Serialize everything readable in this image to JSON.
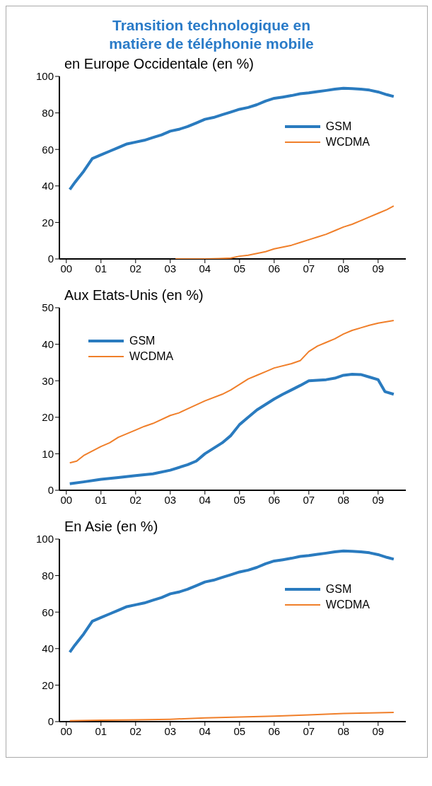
{
  "chart_data": [
    {
      "type": "line",
      "title": "Transition technologique en matière de téléphonie mobile",
      "subtitle": "en Europe Occidentale  (en %)",
      "xlim": [
        1999.8,
        2009.8
      ],
      "xticks": [
        {
          "value": 2000,
          "label": "00"
        },
        {
          "value": 2001,
          "label": "01"
        },
        {
          "value": 2002,
          "label": "02"
        },
        {
          "value": 2003,
          "label": "03"
        },
        {
          "value": 2004,
          "label": "04"
        },
        {
          "value": 2005,
          "label": "05"
        },
        {
          "value": 2006,
          "label": "06"
        },
        {
          "value": 2007,
          "label": "07"
        },
        {
          "value": 2008,
          "label": "08"
        },
        {
          "value": 2009,
          "label": "09"
        }
      ],
      "ylim": [
        0,
        100
      ],
      "yticks": [
        0,
        20,
        40,
        60,
        80,
        100
      ],
      "legend": "top right",
      "series": [
        {
          "name": "GSM",
          "color": "#2a7bbf",
          "x": [
            2000.1,
            2000.25,
            2000.5,
            2000.75,
            2001,
            2001.25,
            2001.5,
            2001.75,
            2002,
            2002.25,
            2002.5,
            2002.75,
            2003,
            2003.25,
            2003.5,
            2003.75,
            2004,
            2004.25,
            2004.5,
            2004.75,
            2005,
            2005.25,
            2005.5,
            2005.75,
            2006,
            2006.25,
            2006.5,
            2006.75,
            2007,
            2007.25,
            2007.5,
            2007.75,
            2008,
            2008.25,
            2008.5,
            2008.75,
            2009,
            2009.25,
            2009.45
          ],
          "values": [
            38,
            42,
            48,
            55,
            57,
            59,
            61,
            63,
            64,
            65,
            66.5,
            68,
            70,
            71,
            72.5,
            74.5,
            76.5,
            77.5,
            79,
            80.5,
            82,
            83,
            84.5,
            86.5,
            88,
            88.7,
            89.5,
            90.5,
            91,
            91.7,
            92.3,
            93,
            93.5,
            93.3,
            93,
            92.5,
            91.5,
            90,
            89
          ]
        },
        {
          "name": "WCDMA",
          "color": "#f07f2a",
          "x": [
            2003.15,
            2003.5,
            2004,
            2004.4,
            2004.75,
            2005,
            2005.25,
            2005.5,
            2005.75,
            2006,
            2006.25,
            2006.5,
            2006.75,
            2007,
            2007.25,
            2007.5,
            2007.75,
            2008,
            2008.25,
            2008.5,
            2008.75,
            2009,
            2009.25,
            2009.45
          ],
          "values": [
            0,
            0,
            0,
            0.2,
            0.5,
            1.5,
            2,
            3,
            4,
            5.5,
            6.5,
            7.5,
            9,
            10.5,
            12,
            13.5,
            15.5,
            17.5,
            19,
            21,
            23,
            25,
            27,
            29
          ]
        }
      ]
    },
    {
      "type": "line",
      "title": "Aux Etats-Unis (en %)",
      "xlim": [
        1999.8,
        2009.8
      ],
      "xticks": [
        {
          "value": 2000,
          "label": "00"
        },
        {
          "value": 2001,
          "label": "01"
        },
        {
          "value": 2002,
          "label": "02"
        },
        {
          "value": 2003,
          "label": "03"
        },
        {
          "value": 2004,
          "label": "04"
        },
        {
          "value": 2005,
          "label": "05"
        },
        {
          "value": 2006,
          "label": "06"
        },
        {
          "value": 2007,
          "label": "07"
        },
        {
          "value": 2008,
          "label": "08"
        },
        {
          "value": 2009,
          "label": "09"
        }
      ],
      "ylim": [
        0,
        50
      ],
      "yticks": [
        0,
        10,
        20,
        30,
        40,
        50
      ],
      "legend": "top left",
      "series": [
        {
          "name": "GSM",
          "color": "#2a7bbf",
          "x": [
            2000.1,
            2000.5,
            2001,
            2001.5,
            2002,
            2002.5,
            2003,
            2003.5,
            2003.75,
            2004,
            2004.25,
            2004.5,
            2004.75,
            2005,
            2005.25,
            2005.5,
            2005.75,
            2006,
            2006.25,
            2006.5,
            2006.75,
            2007,
            2007.5,
            2007.75,
            2008,
            2008.25,
            2008.5,
            2008.75,
            2009,
            2009.2,
            2009.45
          ],
          "values": [
            1.8,
            2.3,
            3,
            3.5,
            4,
            4.5,
            5.5,
            7,
            8,
            10,
            11.5,
            13,
            15,
            18,
            20,
            22,
            23.5,
            25,
            26.3,
            27.5,
            28.7,
            30,
            30.3,
            30.7,
            31.5,
            31.8,
            31.7,
            31,
            30.3,
            27,
            26.3
          ]
        },
        {
          "name": "WCDMA",
          "color": "#f07f2a",
          "x": [
            2000.1,
            2000.3,
            2000.5,
            2001,
            2001.25,
            2001.5,
            2002,
            2002.25,
            2002.5,
            2003,
            2003.25,
            2003.5,
            2004,
            2004.5,
            2004.75,
            2005,
            2005.25,
            2005.5,
            2005.75,
            2006,
            2006.5,
            2006.75,
            2007,
            2007.25,
            2007.5,
            2007.75,
            2008,
            2008.25,
            2008.5,
            2008.75,
            2009,
            2009.45
          ],
          "values": [
            7.5,
            8,
            9.5,
            12,
            13,
            14.5,
            16.5,
            17.5,
            18.3,
            20.5,
            21.2,
            22.3,
            24.5,
            26.3,
            27.5,
            29,
            30.5,
            31.5,
            32.5,
            33.5,
            34.7,
            35.5,
            38,
            39.5,
            40.5,
            41.5,
            42.8,
            43.8,
            44.5,
            45.2,
            45.8,
            46.5
          ]
        }
      ]
    },
    {
      "type": "line",
      "title": "En Asie (en %)",
      "xlim": [
        1999.8,
        2009.8
      ],
      "xticks": [
        {
          "value": 2000,
          "label": "00"
        },
        {
          "value": 2001,
          "label": "01"
        },
        {
          "value": 2002,
          "label": "02"
        },
        {
          "value": 2003,
          "label": "03"
        },
        {
          "value": 2004,
          "label": "04"
        },
        {
          "value": 2005,
          "label": "05"
        },
        {
          "value": 2006,
          "label": "06"
        },
        {
          "value": 2007,
          "label": "07"
        },
        {
          "value": 2008,
          "label": "08"
        },
        {
          "value": 2009,
          "label": "09"
        }
      ],
      "ylim": [
        0,
        100
      ],
      "yticks": [
        0,
        20,
        40,
        60,
        80,
        100
      ],
      "legend": "top right",
      "series": [
        {
          "name": "GSM",
          "color": "#2a7bbf",
          "x": [
            2000.1,
            2000.25,
            2000.5,
            2000.75,
            2001,
            2001.25,
            2001.5,
            2001.75,
            2002,
            2002.25,
            2002.5,
            2002.75,
            2003,
            2003.25,
            2003.5,
            2003.75,
            2004,
            2004.25,
            2004.5,
            2004.75,
            2005,
            2005.25,
            2005.5,
            2005.75,
            2006,
            2006.25,
            2006.5,
            2006.75,
            2007,
            2007.25,
            2007.5,
            2007.75,
            2008,
            2008.25,
            2008.5,
            2008.75,
            2009,
            2009.25,
            2009.45
          ],
          "values": [
            38,
            42,
            48,
            55,
            57,
            59,
            61,
            63,
            64,
            65,
            66.5,
            68,
            70,
            71,
            72.5,
            74.5,
            76.5,
            77.5,
            79,
            80.5,
            82,
            83,
            84.5,
            86.5,
            88,
            88.7,
            89.5,
            90.5,
            91,
            91.7,
            92.3,
            93,
            93.5,
            93.3,
            93,
            92.5,
            91.5,
            90,
            89
          ]
        },
        {
          "name": "WCDMA",
          "color": "#f07f2a",
          "x": [
            2000.1,
            2001,
            2002,
            2003,
            2004,
            2005,
            2006,
            2007,
            2008,
            2008.75,
            2009.45
          ],
          "values": [
            0.5,
            0.8,
            1,
            1.3,
            2,
            2.5,
            3,
            3.7,
            4.5,
            4.7,
            5
          ]
        }
      ]
    }
  ]
}
